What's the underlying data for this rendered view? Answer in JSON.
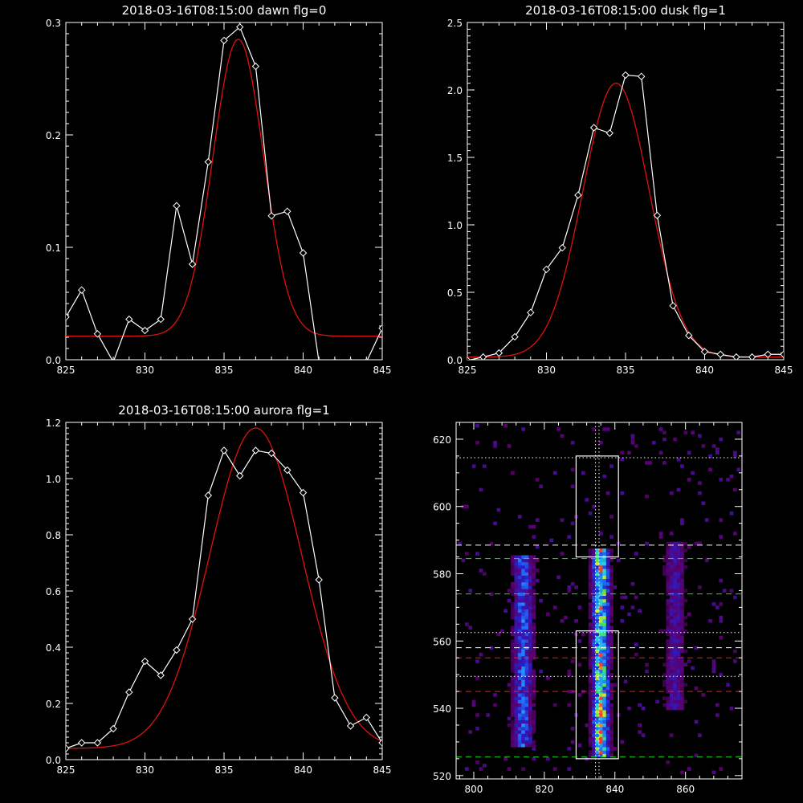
{
  "colors": {
    "background": "#000000",
    "data": "#ffffff",
    "fit": "#e01010",
    "axis": "#ffffff",
    "green_line": "#22dd22",
    "red_line": "#e02020",
    "white_line": "#ffffff"
  },
  "chart_data": [
    {
      "id": "dawn",
      "type": "line",
      "title": "2018-03-16T08:15:00 dawn flg=0",
      "xlim": [
        825,
        845
      ],
      "ylim": [
        0,
        0.3
      ],
      "xticks": [
        "825",
        "830",
        "835",
        "840",
        "845"
      ],
      "yticks": [
        "0.0",
        "0.1",
        "0.2",
        "0.3"
      ],
      "series": [
        {
          "role": "data",
          "marker": "diamond",
          "x": [
            825,
            826,
            827,
            828,
            829,
            830,
            831,
            832,
            833,
            834,
            835,
            836,
            837,
            838,
            839,
            840,
            841,
            842,
            843,
            844,
            845
          ],
          "y": [
            0.038,
            0.062,
            0.023,
            -0.002,
            0.036,
            0.026,
            0.036,
            0.137,
            0.085,
            0.176,
            0.284,
            0.296,
            0.261,
            0.128,
            0.132,
            0.095,
            -0.002,
            -0.002,
            -0.002,
            -0.002,
            0.028
          ]
        },
        {
          "role": "fit",
          "gaussian": {
            "amp": 0.264,
            "center": 835.9,
            "sigma": 1.6,
            "offset": 0.021
          }
        }
      ]
    },
    {
      "id": "dusk",
      "type": "line",
      "title": "2018-03-16T08:15:00 dusk flg=1",
      "xlim": [
        825,
        845
      ],
      "ylim": [
        0,
        2.5
      ],
      "xticks": [
        "825",
        "830",
        "835",
        "840",
        "845"
      ],
      "yticks": [
        "0.0",
        "0.5",
        "1.0",
        "1.5",
        "2.0",
        "2.5"
      ],
      "series": [
        {
          "role": "data",
          "marker": "diamond",
          "x": [
            825,
            826,
            827,
            828,
            829,
            830,
            831,
            832,
            833,
            834,
            835,
            836,
            837,
            838,
            839,
            840,
            841,
            842,
            843,
            844,
            845
          ],
          "y": [
            -0.005,
            0.02,
            0.05,
            0.17,
            0.35,
            0.67,
            0.83,
            1.22,
            1.72,
            1.68,
            2.11,
            2.1,
            1.07,
            0.4,
            0.18,
            0.06,
            0.04,
            0.02,
            0.02,
            0.04,
            0.04
          ]
        },
        {
          "role": "fit",
          "gaussian": {
            "amp": 2.03,
            "center": 834.4,
            "sigma": 2.1,
            "offset": 0.02
          }
        }
      ]
    },
    {
      "id": "aurora",
      "type": "line",
      "title": "2018-03-16T08:15:00 aurora flg=1",
      "xlim": [
        825,
        845
      ],
      "ylim": [
        0,
        1.2
      ],
      "xticks": [
        "825",
        "830",
        "835",
        "840",
        "845"
      ],
      "yticks": [
        "0.0",
        "0.2",
        "0.4",
        "0.6",
        "0.8",
        "1.0",
        "1.2"
      ],
      "series": [
        {
          "role": "data",
          "marker": "diamond",
          "x": [
            825,
            826,
            827,
            828,
            829,
            830,
            831,
            832,
            833,
            834,
            835,
            836,
            837,
            838,
            839,
            840,
            841,
            842,
            843,
            844,
            845
          ],
          "y": [
            0.04,
            0.06,
            0.06,
            0.11,
            0.24,
            0.35,
            0.3,
            0.39,
            0.5,
            0.94,
            1.1,
            1.01,
            1.1,
            1.09,
            1.03,
            0.95,
            0.64,
            0.22,
            0.12,
            0.15,
            0.06
          ]
        },
        {
          "role": "fit",
          "gaussian": {
            "amp": 1.14,
            "center": 837.0,
            "sigma": 2.9,
            "offset": 0.04
          }
        }
      ]
    },
    {
      "id": "image",
      "type": "heatmap",
      "xlim": [
        795,
        876
      ],
      "ylim": [
        519,
        625
      ],
      "xticks": [
        "800",
        "820",
        "840",
        "860"
      ],
      "xtick_values": [
        800,
        820,
        840,
        860
      ],
      "yticks": [
        "520",
        "540",
        "560",
        "580",
        "600",
        "620"
      ],
      "ytick_values": [
        520,
        540,
        560,
        580,
        600,
        620
      ],
      "emission_columns": [
        {
          "x": 814,
          "y_range": [
            529,
            585
          ],
          "peak": 0.55
        },
        {
          "x": 836,
          "y_range": [
            526,
            587
          ],
          "peak": 1.0
        },
        {
          "x": 857,
          "y_range": [
            540,
            589
          ],
          "peak": 0.3
        }
      ],
      "boxes": [
        {
          "x": [
            829,
            841
          ],
          "y": [
            585,
            615
          ]
        },
        {
          "x": [
            829,
            841
          ],
          "y": [
            525,
            563
          ]
        }
      ],
      "center_dotted_x": [
        834.5,
        835.5
      ],
      "hlines": [
        {
          "y": 614.5,
          "style": "dotted",
          "color": "white"
        },
        {
          "y": 588.5,
          "style": "dashed",
          "color": "white"
        },
        {
          "y": 584.5,
          "style": "dashed",
          "color": "green"
        },
        {
          "y": 574.0,
          "style": "dashed",
          "color": "green"
        },
        {
          "y": 562.5,
          "style": "dotted",
          "color": "white"
        },
        {
          "y": 558.0,
          "style": "dashed",
          "color": "white"
        },
        {
          "y": 555.0,
          "style": "dashed",
          "color": "red"
        },
        {
          "y": 549.5,
          "style": "dotted",
          "color": "white"
        },
        {
          "y": 545.0,
          "style": "dashed",
          "color": "red"
        },
        {
          "y": 525.5,
          "style": "dashed",
          "color": "green"
        }
      ]
    }
  ]
}
